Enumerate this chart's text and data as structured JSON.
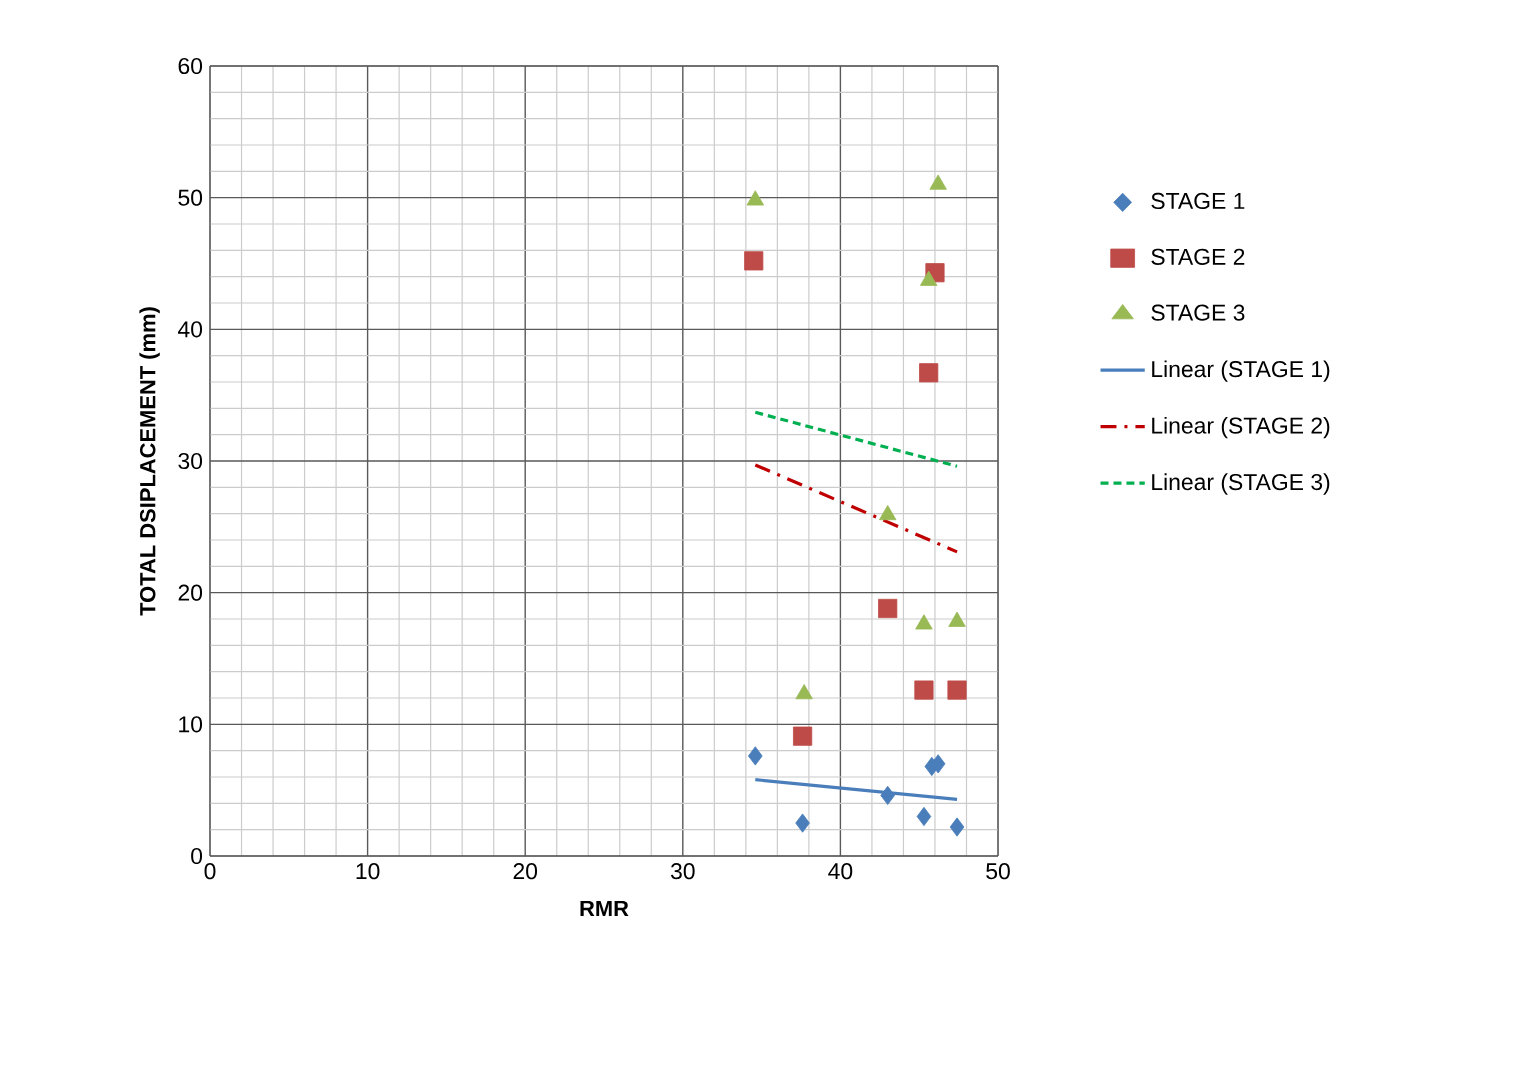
{
  "chart_data": {
    "type": "scatter",
    "xlabel": "RMR",
    "ylabel": "TOTAL DSIPLACEMENT  (mm)",
    "xlim": [
      0,
      50
    ],
    "ylim": [
      0,
      60
    ],
    "xticks": [
      0,
      10,
      20,
      30,
      40,
      50
    ],
    "yticks": [
      0,
      10,
      20,
      30,
      40,
      50,
      60
    ],
    "grid": true,
    "legend": "right",
    "series": [
      {
        "name": "STAGE 1",
        "marker": "diamond",
        "color": "#4a7ebb",
        "x": [
          34.6,
          37.6,
          43.0,
          45.3,
          45.8,
          46.2,
          47.4
        ],
        "values": [
          7.6,
          2.5,
          4.6,
          3.0,
          6.8,
          7.0,
          2.2
        ]
      },
      {
        "name": "STAGE 2",
        "marker": "square",
        "color": "#be4b48",
        "x": [
          34.5,
          37.6,
          43.0,
          45.3,
          45.6,
          46.0,
          47.4
        ],
        "values": [
          45.2,
          9.1,
          18.8,
          12.6,
          36.7,
          44.3,
          12.6
        ]
      },
      {
        "name": "STAGE 3",
        "marker": "triangle",
        "color": "#98b954",
        "x": [
          34.6,
          37.7,
          43.0,
          45.3,
          45.6,
          46.2,
          47.4
        ],
        "values": [
          49.8,
          12.3,
          25.9,
          17.6,
          43.7,
          51.0,
          17.8
        ]
      },
      {
        "name": "Linear (STAGE 1)",
        "type": "line",
        "line_style": "solid",
        "color": "#4a7ebb",
        "x": [
          34.6,
          47.4
        ],
        "values": [
          5.8,
          4.3
        ]
      },
      {
        "name": "Linear (STAGE 2)",
        "type": "line",
        "line_style": "dashdot",
        "color": "#c00000",
        "x": [
          34.6,
          47.4
        ],
        "values": [
          29.7,
          23.1
        ]
      },
      {
        "name": "Linear (STAGE 3)",
        "type": "line",
        "line_style": "dashed",
        "color": "#00b050",
        "x": [
          34.6,
          47.4
        ],
        "values": [
          33.7,
          29.6
        ]
      }
    ]
  }
}
